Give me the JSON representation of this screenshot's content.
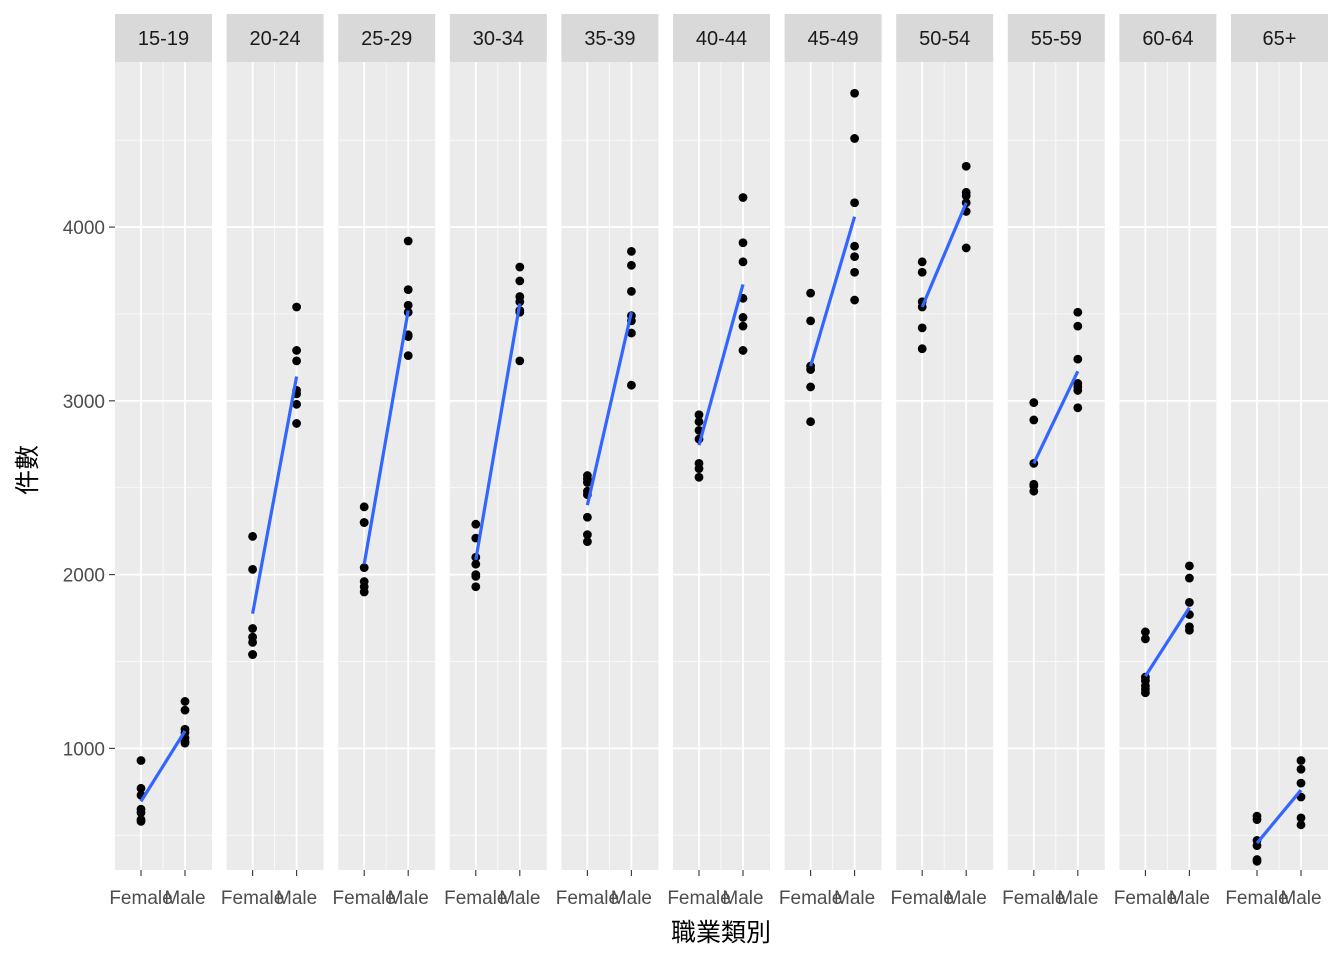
{
  "chart_data": {
    "type": "scatter",
    "facet_by": "age_group",
    "xlabel": "職業類別",
    "ylabel": "件數",
    "categories": [
      "Female",
      "Male"
    ],
    "y_ticks": [
      1000,
      2000,
      3000,
      4000
    ],
    "ylim": [
      300,
      4950
    ],
    "grid": true,
    "colors": {
      "panel_bg": "#ebebeb",
      "strip_bg": "#d9d9d9",
      "grid_major": "#ffffff",
      "point": "#000000",
      "trend_line": "#3366ff"
    },
    "facets": [
      {
        "label": "15-19",
        "female": [
          930,
          770,
          730,
          650,
          630,
          590,
          580
        ],
        "male": [
          1270,
          1220,
          1110,
          1090,
          1060,
          1040,
          1030
        ],
        "fit": [
          695,
          1100
        ]
      },
      {
        "label": "20-24",
        "female": [
          2220,
          2030,
          1690,
          1640,
          1610,
          1540,
          1540
        ],
        "male": [
          3540,
          3290,
          3230,
          3060,
          3040,
          2980,
          2870
        ],
        "fit": [
          1775,
          3140
        ]
      },
      {
        "label": "25-29",
        "female": [
          2390,
          2300,
          2300,
          2040,
          1960,
          1930,
          1900
        ],
        "male": [
          3920,
          3640,
          3550,
          3510,
          3380,
          3370,
          3260
        ],
        "fit": [
          2060,
          3520
        ]
      },
      {
        "label": "30-34",
        "female": [
          2290,
          2210,
          2100,
          2060,
          2000,
          1990,
          1930
        ],
        "male": [
          3770,
          3690,
          3600,
          3570,
          3520,
          3510,
          3230
        ],
        "fit": [
          2085,
          3560
        ]
      },
      {
        "label": "35-39",
        "female": [
          2570,
          2550,
          2530,
          2480,
          2460,
          2330,
          2230,
          2190
        ],
        "male": [
          3860,
          3780,
          3630,
          3490,
          3460,
          3390,
          3090
        ],
        "fit": [
          2400,
          3510
        ]
      },
      {
        "label": "40-44",
        "female": [
          2920,
          2880,
          2830,
          2780,
          2640,
          2610,
          2560
        ],
        "male": [
          4170,
          3910,
          3800,
          3590,
          3480,
          3430,
          3290
        ],
        "fit": [
          2745,
          3670
        ]
      },
      {
        "label": "45-49",
        "female": [
          3620,
          3460,
          3200,
          3180,
          3080,
          2880
        ],
        "male": [
          4770,
          4510,
          4140,
          3890,
          3830,
          3740,
          3580
        ],
        "fit": [
          3200,
          4060
        ]
      },
      {
        "label": "50-54",
        "female": [
          3800,
          3740,
          3570,
          3540,
          3420,
          3300
        ],
        "male": [
          4350,
          4200,
          4180,
          4140,
          4090,
          3880
        ],
        "fit": [
          3540,
          4140
        ]
      },
      {
        "label": "55-59",
        "female": [
          2990,
          2890,
          2640,
          2520,
          2510,
          2480
        ],
        "male": [
          3510,
          3430,
          3240,
          3100,
          3080,
          3060,
          2960
        ],
        "fit": [
          2640,
          3170
        ]
      },
      {
        "label": "60-64",
        "female": [
          1670,
          1630,
          1410,
          1390,
          1360,
          1340,
          1320
        ],
        "male": [
          2050,
          1980,
          1840,
          1770,
          1700,
          1680
        ],
        "fit": [
          1415,
          1810
        ]
      },
      {
        "label": "65+",
        "female": [
          610,
          590,
          470,
          440,
          360,
          350
        ],
        "male": [
          930,
          880,
          800,
          720,
          600,
          560
        ],
        "fit": [
          455,
          760
        ]
      }
    ]
  }
}
